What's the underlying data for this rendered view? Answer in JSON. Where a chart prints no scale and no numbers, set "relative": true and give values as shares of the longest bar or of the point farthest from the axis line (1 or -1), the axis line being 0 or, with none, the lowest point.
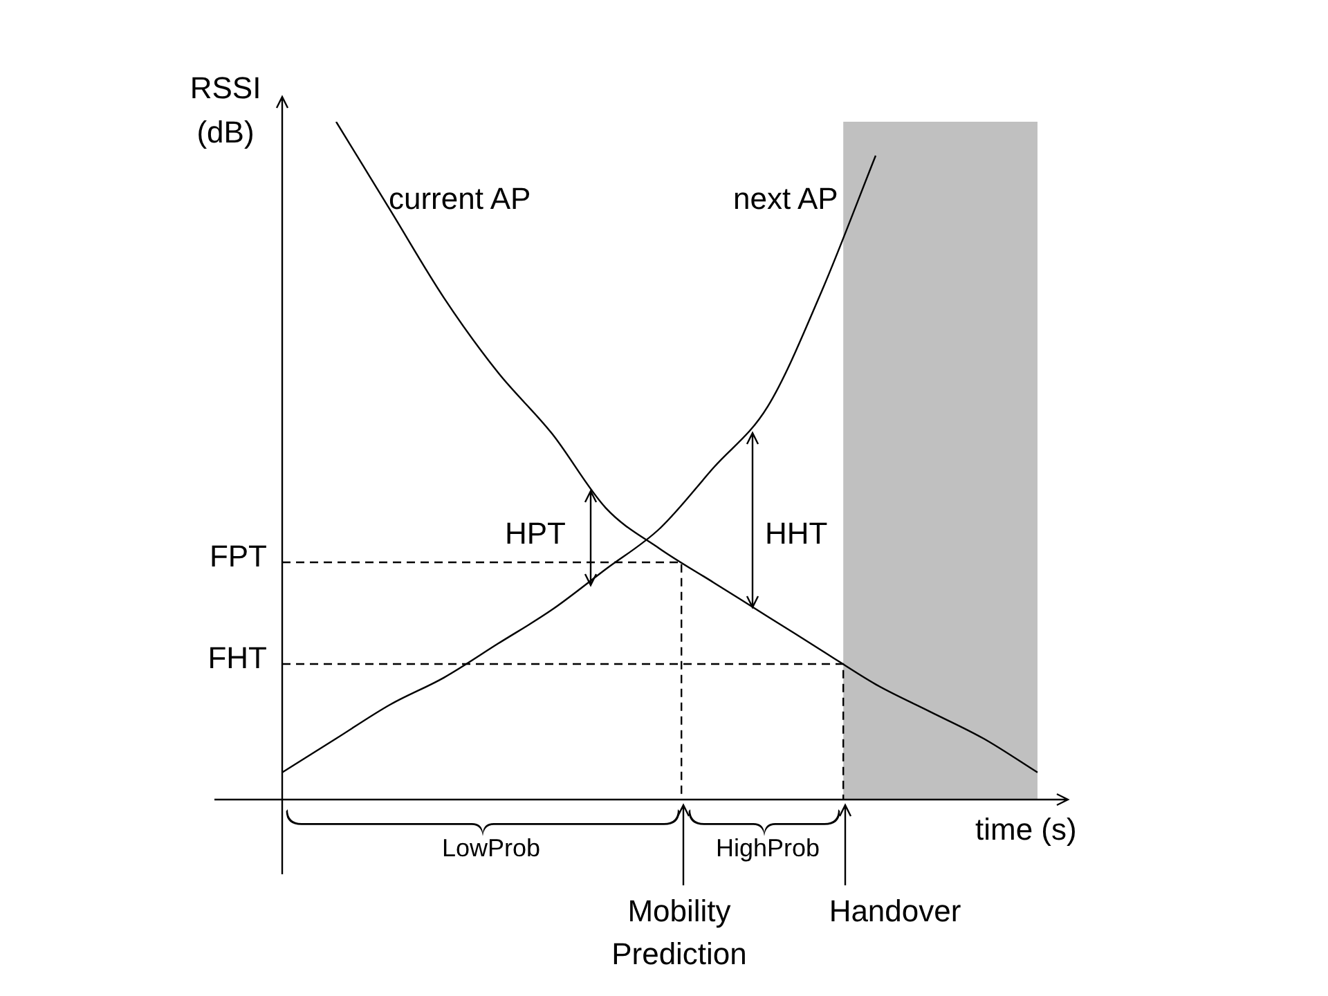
{
  "chart_data": {
    "type": "line",
    "relative": true,
    "xlabel": "time (s)",
    "ylabel": "RSSI\n(dB)",
    "categories": [
      null,
      null,
      null,
      null,
      null,
      null,
      null,
      null,
      null,
      null,
      null,
      null,
      null,
      null,
      null
    ],
    "series": [
      {
        "name": "current AP",
        "color": "#000000",
        "values": [
          null,
          1,
          0.87,
          0.74,
          0.63,
          0.54,
          0.43,
          0.37,
          0.32,
          0.27,
          0.22,
          0.17,
          0.13,
          0.09,
          0.04
        ]
      },
      {
        "name": "next AP",
        "color": "#000000",
        "values": [
          0.04,
          0.09,
          0.14,
          0.18,
          0.23,
          0.28,
          0.34,
          0.4,
          0.49,
          0.58,
          0.75,
          0.95,
          null,
          null,
          null
        ]
      }
    ],
    "ref_lines": [
      {
        "axis": "y",
        "value": 0.35,
        "label": "FPT",
        "line_style": "dashed"
      },
      {
        "axis": "y",
        "value": 0.2,
        "label": "FHT",
        "line_style": "dashed"
      }
    ],
    "annotations": [
      "HPT",
      "HHT",
      "LowProb",
      "HighProb",
      "Mobility\nPrediction",
      "Handover"
    ],
    "marker": "none",
    "line_style": "solid"
  }
}
